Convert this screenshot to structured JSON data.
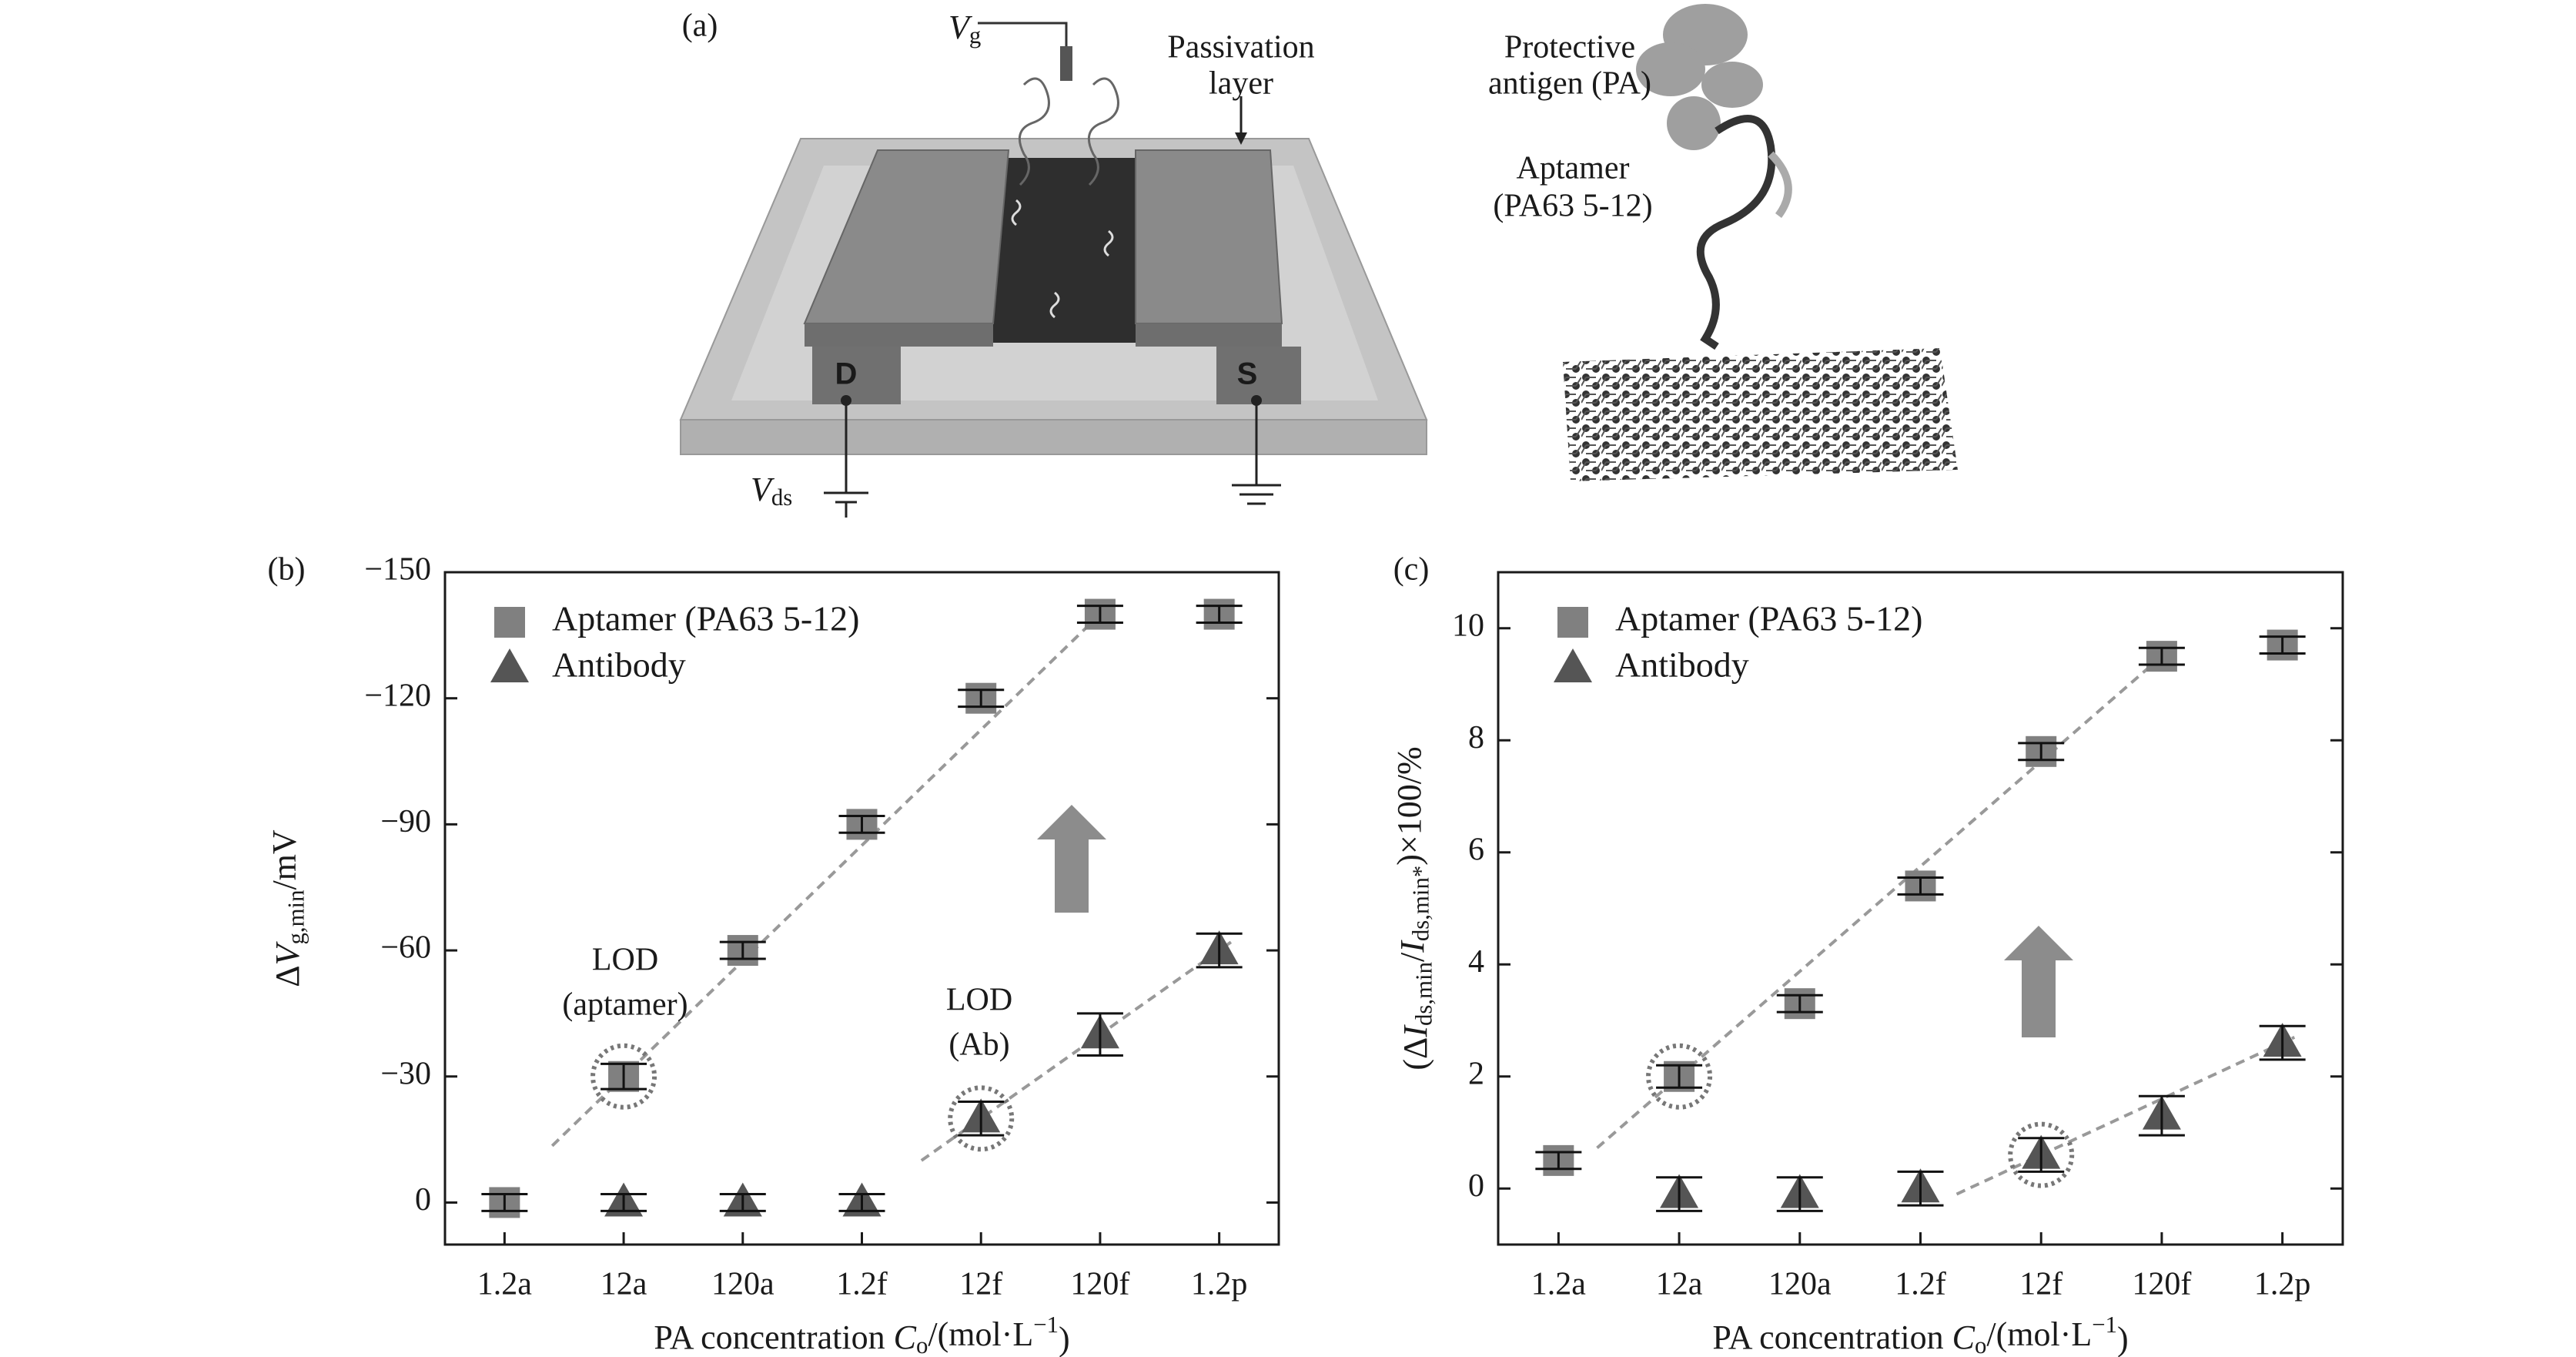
{
  "diagram": {
    "panel": "(a)",
    "gate": [
      {
        "text": "V",
        "italic": true
      },
      {
        "text": "g",
        "sub": true
      }
    ],
    "passivation": [
      "Passivation",
      "layer"
    ],
    "drain": "D",
    "source": "S",
    "vds": [
      {
        "text": "V",
        "italic": true
      },
      {
        "text": "ds",
        "sub": true
      }
    ],
    "antigen": [
      "Protective",
      "antigen (PA)"
    ],
    "aptamer": [
      "Aptamer",
      "(PA63 5-12)"
    ]
  },
  "chart_data": [
    {
      "type": "scatter",
      "panel": "(b)",
      "categories": [
        "1.2a",
        "12a",
        "120a",
        "1.2f",
        "12f",
        "120f",
        "1.2p"
      ],
      "series": [
        {
          "name": "Aptamer (PA63 5-12)",
          "color": "#808080",
          "marker": "square",
          "values": [
            0,
            -30,
            -60,
            -90,
            -120,
            -140,
            -140
          ],
          "errors": [
            2,
            3,
            2,
            2,
            2,
            2,
            2
          ]
        },
        {
          "name": "Antibody",
          "color": "#555555",
          "marker": "triangle",
          "values": [
            null,
            0,
            0,
            0,
            -20,
            -40,
            -60
          ],
          "errors": [
            null,
            2,
            2,
            2,
            4,
            5,
            4
          ]
        }
      ],
      "ylim": [
        10,
        -150
      ],
      "yticks": [
        {
          "value": 0,
          "label": "0"
        },
        {
          "value": -30,
          "label": "−30"
        },
        {
          "value": -60,
          "label": "−60"
        },
        {
          "value": -90,
          "label": "−90"
        },
        {
          "value": -120,
          "label": "−120"
        },
        {
          "value": -150,
          "label": "−150"
        }
      ],
      "ylabel": [
        {
          "text": "Δ"
        },
        {
          "text": "V",
          "italic": true
        },
        {
          "text": "g,min",
          "sub": true
        },
        {
          "text": "/mV"
        }
      ],
      "xlabel": [
        {
          "text": "PA concentration "
        },
        {
          "text": "C",
          "italic": true
        },
        {
          "text": "o",
          "sub": true
        },
        {
          "text": "/(mol·L"
        },
        {
          "text": "−1",
          "sup": true
        },
        {
          "text": ")"
        }
      ],
      "annotations": [
        [
          "LOD",
          "(aptamer)"
        ],
        [
          "LOD",
          "(Ab)"
        ]
      ]
    },
    {
      "type": "scatter",
      "panel": "(c)",
      "categories": [
        "1.2a",
        "12a",
        "120a",
        "1.2f",
        "12f",
        "120f",
        "1.2p"
      ],
      "series": [
        {
          "name": "Aptamer (PA63 5-12)",
          "color": "#808080",
          "marker": "square",
          "values": [
            0.5,
            2.0,
            3.3,
            5.4,
            7.8,
            9.5,
            9.7
          ],
          "errors": [
            0.15,
            0.2,
            0.15,
            0.15,
            0.15,
            0.15,
            0.15
          ]
        },
        {
          "name": "Antibody",
          "color": "#555555",
          "marker": "triangle",
          "values": [
            null,
            -0.1,
            -0.1,
            0.0,
            0.6,
            1.3,
            2.6
          ],
          "errors": [
            null,
            0.3,
            0.3,
            0.3,
            0.3,
            0.35,
            0.3
          ]
        }
      ],
      "ylim": [
        -1,
        11
      ],
      "yticks": [
        0,
        2,
        4,
        6,
        8,
        10
      ],
      "ylabel": [
        {
          "text": "(Δ"
        },
        {
          "text": "I",
          "italic": true
        },
        {
          "text": "ds,min",
          "sub": true
        },
        {
          "text": "/"
        },
        {
          "text": "I",
          "italic": true
        },
        {
          "text": "ds,min*",
          "sub": true
        },
        {
          "text": ")×100/%"
        }
      ],
      "xlabel": [
        {
          "text": "PA concentration "
        },
        {
          "text": "C",
          "italic": true
        },
        {
          "text": "o",
          "sub": true
        },
        {
          "text": "/(mol·L"
        },
        {
          "text": "−1",
          "sup": true
        },
        {
          "text": ")"
        }
      ]
    }
  ]
}
